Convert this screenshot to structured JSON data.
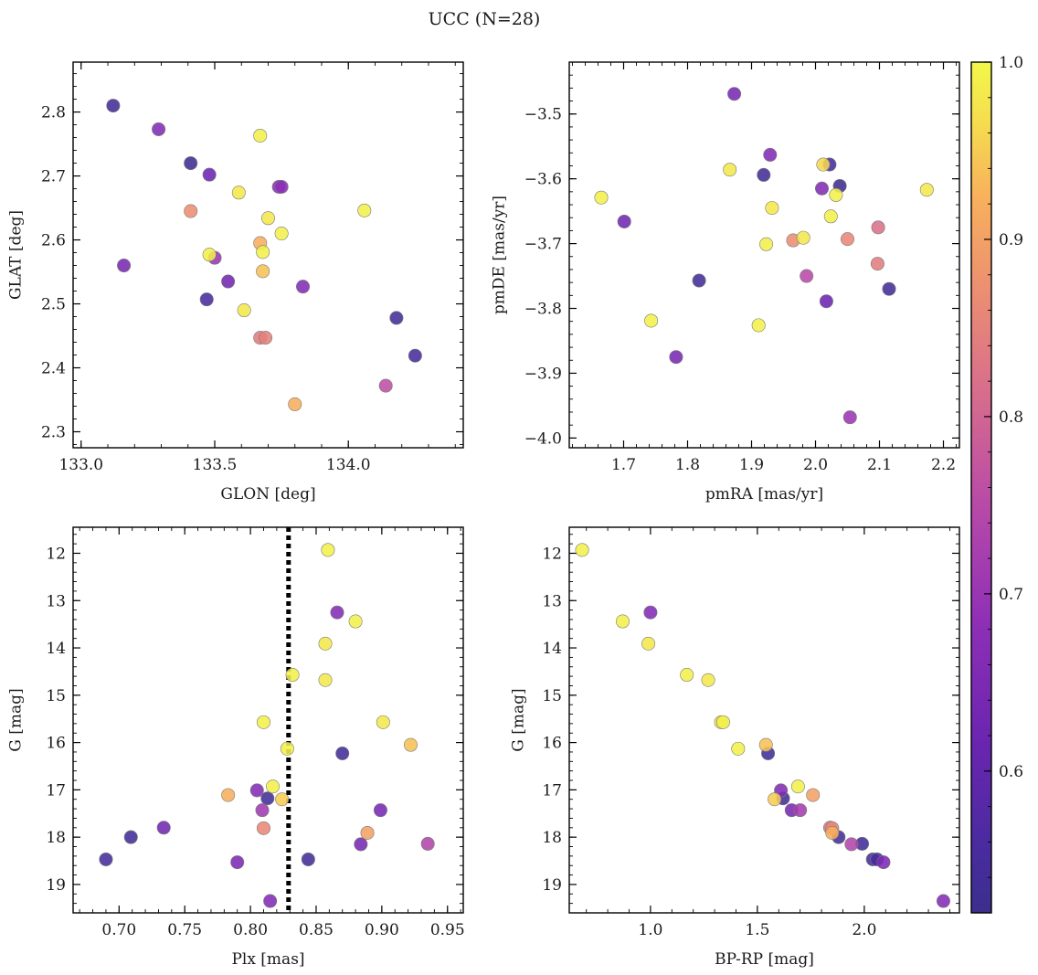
{
  "chart_data": {
    "title": "UCC (N=28)",
    "colormap": "plasma",
    "colorbar": {
      "range": [
        0.52,
        1.0
      ],
      "ticks": [
        0.6,
        0.7,
        0.8,
        0.9,
        1.0
      ],
      "tick_labels": [
        "0.6",
        "0.7",
        "0.8",
        "0.9",
        "1.0"
      ]
    },
    "panels": [
      {
        "id": "glon-glat",
        "type": "scatter",
        "xlabel": "GLON [deg]",
        "ylabel": "GLAT [deg]",
        "xlim": [
          132.97,
          134.43
        ],
        "ylim": [
          2.275,
          2.878
        ],
        "xticks": [
          133.0,
          133.5,
          134.0
        ],
        "xtick_labels": [
          "133.0",
          "133.5",
          "134.0"
        ],
        "yticks": [
          2.3,
          2.4,
          2.5,
          2.6,
          2.7,
          2.8
        ],
        "ytick_labels": [
          "2.3",
          "2.4",
          "2.5",
          "2.6",
          "2.7",
          "2.8"
        ],
        "x": [
          133.12,
          133.29,
          133.41,
          133.48,
          133.67,
          133.16,
          133.41,
          133.7,
          133.59,
          133.48,
          133.5,
          133.55,
          133.47,
          133.61,
          133.67,
          133.68,
          133.75,
          134.06,
          133.74,
          133.68,
          133.69,
          133.83,
          133.8,
          134.14,
          134.18,
          134.25,
          133.75,
          133.67
        ],
        "y": [
          2.81,
          2.773,
          2.72,
          2.702,
          2.763,
          2.56,
          2.645,
          2.634,
          2.674,
          2.577,
          2.572,
          2.535,
          2.507,
          2.49,
          2.595,
          2.581,
          2.61,
          2.646,
          2.683,
          2.551,
          2.447,
          2.527,
          2.343,
          2.372,
          2.478,
          2.419,
          2.683,
          2.447
        ],
        "c": [
          0.54,
          0.66,
          0.53,
          0.62,
          0.99,
          0.64,
          0.87,
          0.98,
          0.98,
          0.99,
          0.7,
          0.63,
          0.55,
          0.98,
          0.92,
          0.99,
          0.99,
          0.99,
          0.67,
          0.94,
          0.85,
          0.66,
          0.92,
          0.76,
          0.54,
          0.55,
          0.68,
          0.84
        ]
      },
      {
        "id": "pm",
        "type": "scatter",
        "xlabel": "pmRA [mas/yr]",
        "ylabel": "pmDE [mas/yr]",
        "xlim": [
          1.615,
          2.225
        ],
        "ylim": [
          -4.015,
          -3.42
        ],
        "xticks": [
          1.7,
          1.8,
          1.9,
          2.0,
          2.1,
          2.2
        ],
        "xtick_labels": [
          "1.7",
          "1.8",
          "1.9",
          "2.0",
          "2.1",
          "2.2"
        ],
        "yticks": [
          -4.0,
          -3.9,
          -3.8,
          -3.7,
          -3.6,
          -3.5
        ],
        "ytick_labels": [
          "−4.0",
          "−3.9",
          "−3.8",
          "−3.7",
          "−3.6",
          "−3.5"
        ],
        "x": [
          1.873,
          1.929,
          1.866,
          1.919,
          2.022,
          2.012,
          2.038,
          2.01,
          2.032,
          1.665,
          1.932,
          2.024,
          1.701,
          1.965,
          1.981,
          1.923,
          2.05,
          2.098,
          2.174,
          1.986,
          1.818,
          2.097,
          2.017,
          2.115,
          1.743,
          1.911,
          1.782,
          2.054
        ],
        "y": [
          -3.469,
          -3.563,
          -3.586,
          -3.594,
          -3.578,
          -3.578,
          -3.611,
          -3.615,
          -3.625,
          -3.629,
          -3.645,
          -3.658,
          -3.666,
          -3.695,
          -3.691,
          -3.701,
          -3.693,
          -3.675,
          -3.617,
          -3.75,
          -3.757,
          -3.731,
          -3.789,
          -3.77,
          -3.819,
          -3.826,
          -3.875,
          -3.968
        ],
        "c": [
          0.64,
          0.66,
          0.98,
          0.54,
          0.55,
          0.96,
          0.53,
          0.66,
          0.99,
          0.99,
          0.98,
          0.99,
          0.63,
          0.87,
          0.98,
          0.99,
          0.86,
          0.82,
          0.98,
          0.75,
          0.54,
          0.84,
          0.62,
          0.54,
          0.99,
          0.99,
          0.64,
          0.7
        ]
      },
      {
        "id": "plx-g",
        "type": "scatter",
        "xlabel": "Plx [mas]",
        "ylabel": "G [mag]",
        "xlim": [
          0.665,
          0.962
        ],
        "ylim": [
          19.6,
          11.45
        ],
        "y_inverted": true,
        "xticks": [
          0.7,
          0.75,
          0.8,
          0.85,
          0.9,
          0.95
        ],
        "xtick_labels": [
          "0.70",
          "0.75",
          "0.80",
          "0.85",
          "0.90",
          "0.95"
        ],
        "yticks": [
          12,
          13,
          14,
          15,
          16,
          17,
          18,
          19
        ],
        "ytick_labels": [
          "12",
          "13",
          "14",
          "15",
          "16",
          "17",
          "18",
          "19"
        ],
        "vline": {
          "x": 0.829,
          "style": "dotted"
        },
        "x": [
          0.859,
          0.866,
          0.88,
          0.857,
          0.832,
          0.857,
          0.81,
          0.901,
          0.828,
          0.922,
          0.87,
          0.805,
          0.783,
          0.817,
          0.824,
          0.813,
          0.809,
          0.899,
          0.734,
          0.81,
          0.889,
          0.709,
          0.884,
          0.935,
          0.69,
          0.844,
          0.79,
          0.815
        ],
        "y": [
          11.93,
          13.25,
          13.44,
          13.91,
          14.57,
          14.68,
          15.57,
          15.57,
          16.13,
          16.05,
          16.23,
          17.01,
          17.11,
          16.93,
          17.2,
          17.18,
          17.43,
          17.43,
          17.8,
          17.81,
          17.91,
          18.0,
          18.15,
          18.14,
          18.47,
          18.47,
          18.53,
          19.35
        ],
        "c": [
          0.99,
          0.66,
          0.99,
          0.98,
          0.99,
          0.98,
          0.99,
          0.98,
          0.99,
          0.94,
          0.54,
          0.66,
          0.92,
          0.99,
          0.95,
          0.54,
          0.71,
          0.64,
          0.63,
          0.86,
          0.9,
          0.54,
          0.64,
          0.74,
          0.55,
          0.54,
          0.65,
          0.66
        ]
      },
      {
        "id": "cmd",
        "type": "scatter",
        "xlabel": "BP-RP [mag]",
        "ylabel": "G [mag]",
        "xlim": [
          0.62,
          2.445
        ],
        "ylim": [
          19.6,
          11.45
        ],
        "y_inverted": true,
        "xticks": [
          1.0,
          1.5,
          2.0
        ],
        "xtick_labels": [
          "1.0",
          "1.5",
          "2.0"
        ],
        "yticks": [
          12,
          13,
          14,
          15,
          16,
          17,
          18,
          19
        ],
        "ytick_labels": [
          "12",
          "13",
          "14",
          "15",
          "16",
          "17",
          "18",
          "19"
        ],
        "x": [
          0.68,
          1.0,
          0.87,
          0.99,
          1.17,
          1.27,
          1.34,
          1.33,
          1.41,
          1.54,
          1.55,
          1.61,
          1.69,
          1.58,
          1.62,
          1.76,
          1.66,
          1.7,
          1.84,
          1.85,
          1.85,
          1.88,
          1.94,
          1.99,
          2.04,
          2.06,
          2.09,
          2.37
        ],
        "y": [
          11.93,
          13.25,
          13.44,
          13.91,
          14.57,
          14.68,
          15.57,
          15.57,
          16.13,
          16.05,
          16.23,
          17.01,
          16.93,
          17.2,
          17.18,
          17.11,
          17.43,
          17.43,
          17.8,
          17.81,
          17.91,
          18.0,
          18.15,
          18.14,
          18.47,
          18.47,
          18.53,
          19.35
        ],
        "c": [
          0.99,
          0.66,
          0.99,
          0.98,
          0.99,
          0.98,
          0.99,
          0.98,
          0.99,
          0.94,
          0.54,
          0.66,
          0.99,
          0.95,
          0.54,
          0.9,
          0.64,
          0.72,
          0.83,
          0.86,
          0.92,
          0.54,
          0.74,
          0.54,
          0.54,
          0.55,
          0.65,
          0.66
        ]
      }
    ]
  }
}
